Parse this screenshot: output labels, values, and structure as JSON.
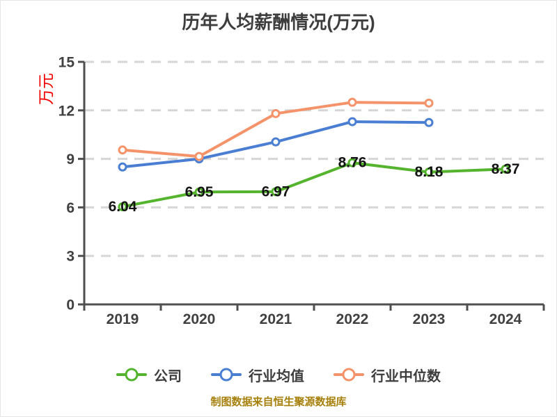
{
  "title_text": "历年人均薪酬情况(万元)",
  "y_axis_unit_label": "万元",
  "footer_note": "制图数据来自恒生聚源数据库",
  "colors": {
    "grid": "#d6d6d6",
    "axis": "#4f4f4f",
    "title_text": "#3d3d3d",
    "unit_text": "#f20000",
    "footer_text": "#a6800b",
    "value_label": "#141414"
  },
  "chart_data": {
    "type": "line",
    "title": "历年人均薪酬情况(万元)",
    "categories": [
      "2019",
      "2020",
      "2021",
      "2022",
      "2023",
      "2024"
    ],
    "y_ticks": [
      0,
      3,
      6,
      9,
      12,
      15
    ],
    "ylim": [
      0,
      15
    ],
    "xlabel": "",
    "ylabel": "万元",
    "grid": "horizontal-dashed",
    "legend_position": "bottom",
    "series": [
      {
        "key": "company",
        "name": "公司",
        "color": "#55b42e",
        "show_labels": true,
        "values": [
          6.04,
          6.95,
          6.97,
          8.76,
          8.18,
          8.37
        ]
      },
      {
        "key": "industry-average",
        "name": "行业均值",
        "color": "#4a7ed2",
        "show_labels": false,
        "values": [
          8.5,
          9.0,
          10.05,
          11.3,
          11.25,
          null
        ]
      },
      {
        "key": "industry-median",
        "name": "行业中位数",
        "color": "#f4926a",
        "show_labels": false,
        "values": [
          9.55,
          9.15,
          11.8,
          12.5,
          12.45,
          null
        ]
      }
    ]
  }
}
